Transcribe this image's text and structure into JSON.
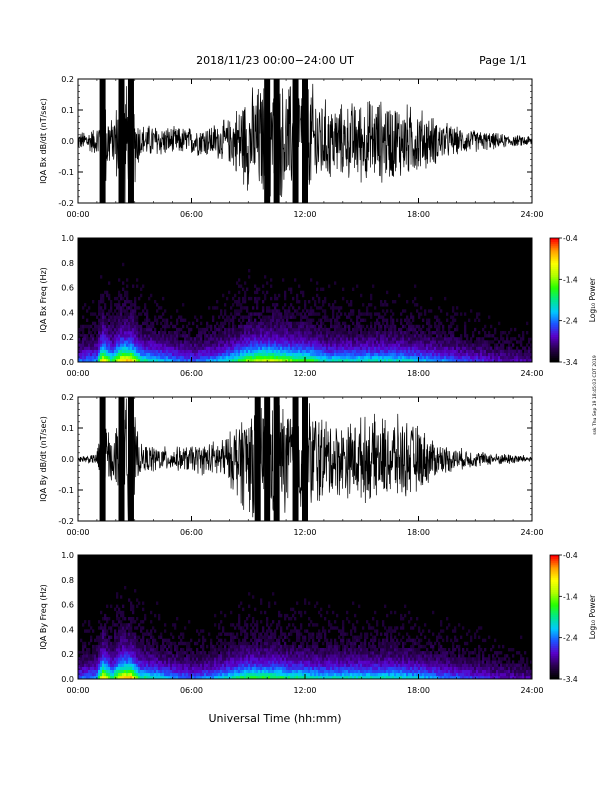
{
  "header": {
    "title": "2018/11/23  00:00−24:00 UT",
    "page": "Page 1/1"
  },
  "footer": {
    "xlabel": "Universal Time (hh:mm)",
    "side_note": "ssk Thu Sep 19 18:45:03 CDT 2019"
  },
  "colors": {
    "colormap": [
      "#000000",
      "#2a0050",
      "#5a00c8",
      "#1e50ff",
      "#00c8ff",
      "#00e88c",
      "#28ff00",
      "#b4ff00",
      "#ffff00",
      "#ffa000",
      "#ff0000"
    ]
  },
  "chart_data": [
    {
      "type": "line",
      "title": "",
      "ylabel": "IQA Bx dB/dt (nT/sec)",
      "xlim": [
        "00:00",
        "24:00"
      ],
      "ylim": [
        -0.2,
        0.2
      ],
      "x_ticks": [
        "00:00",
        "06:00",
        "12:00",
        "18:00",
        "24:00"
      ],
      "y_ticks": [
        "-0.2",
        "-0.1",
        "0.0",
        "0.1",
        "0.2"
      ],
      "x_hours": [
        0,
        1,
        1.3,
        1.8,
        2.3,
        2.8,
        3.3,
        4,
        5,
        6,
        7,
        8,
        8.5,
        9,
        9.5,
        10,
        10.5,
        11,
        11.5,
        12,
        12.5,
        13,
        14,
        15,
        16,
        17,
        18,
        19,
        20,
        21,
        22,
        23,
        24
      ],
      "amplitude": [
        0.03,
        0.05,
        0.22,
        0.07,
        0.22,
        0.22,
        0.06,
        0.06,
        0.05,
        0.05,
        0.06,
        0.08,
        0.14,
        0.18,
        0.2,
        0.22,
        0.22,
        0.2,
        0.22,
        0.22,
        0.2,
        0.15,
        0.13,
        0.15,
        0.15,
        0.14,
        0.12,
        0.08,
        0.05,
        0.04,
        0.03,
        0.02,
        0.02
      ]
    },
    {
      "type": "heatmap",
      "title": "",
      "ylabel": "IQA Bx Freq (Hz)",
      "xlim": [
        "00:00",
        "24:00"
      ],
      "ylim": [
        0,
        1.0
      ],
      "x_ticks": [
        "00:00",
        "06:00",
        "12:00",
        "18:00",
        "24:00"
      ],
      "y_ticks": [
        "0.0",
        "0.2",
        "0.4",
        "0.6",
        "0.8",
        "1.0"
      ],
      "colorbar_label": "Log₁₀ Power",
      "colorbar_ticks": [
        "-0.4",
        "-1.4",
        "-2.4",
        "-3.4"
      ],
      "color_range": [
        -3.4,
        -0.4
      ],
      "x_hours": [
        0,
        1,
        1.3,
        1.8,
        2.3,
        2.8,
        3.3,
        4,
        5,
        6,
        7,
        8,
        8.5,
        9,
        9.5,
        10,
        10.5,
        11,
        11.5,
        12,
        12.5,
        13,
        14,
        15,
        16,
        17,
        18,
        19,
        20,
        21,
        22,
        23,
        24
      ],
      "low_freq_level": [
        0.3,
        0.35,
        0.85,
        0.5,
        0.85,
        0.85,
        0.5,
        0.45,
        0.35,
        0.3,
        0.35,
        0.45,
        0.55,
        0.65,
        0.7,
        0.72,
        0.7,
        0.65,
        0.6,
        0.6,
        0.55,
        0.45,
        0.45,
        0.45,
        0.45,
        0.45,
        0.4,
        0.35,
        0.3,
        0.25,
        0.2,
        0.18,
        0.15
      ]
    },
    {
      "type": "line",
      "title": "",
      "ylabel": "IQA By dB/dt (nT/sec)",
      "xlim": [
        "00:00",
        "24:00"
      ],
      "ylim": [
        -0.2,
        0.2
      ],
      "x_ticks": [
        "00:00",
        "06:00",
        "12:00",
        "18:00",
        "24:00"
      ],
      "y_ticks": [
        "-0.2",
        "-0.1",
        "0.0",
        "0.1",
        "0.2"
      ],
      "x_hours": [
        0,
        1,
        1.3,
        1.8,
        2.3,
        2.8,
        3.3,
        4,
        5,
        6,
        7,
        8,
        8.5,
        9,
        9.5,
        10,
        10.5,
        11,
        11.5,
        12,
        12.5,
        13,
        14,
        15,
        16,
        17,
        18,
        19,
        20,
        21,
        22,
        23,
        24
      ],
      "amplitude": [
        0.01,
        0.02,
        0.22,
        0.06,
        0.22,
        0.22,
        0.05,
        0.05,
        0.04,
        0.05,
        0.06,
        0.09,
        0.16,
        0.2,
        0.22,
        0.22,
        0.22,
        0.2,
        0.22,
        0.22,
        0.2,
        0.15,
        0.13,
        0.15,
        0.15,
        0.15,
        0.12,
        0.06,
        0.04,
        0.03,
        0.02,
        0.02,
        0.01
      ]
    },
    {
      "type": "heatmap",
      "title": "",
      "ylabel": "IQA By Freq (Hz)",
      "xlim": [
        "00:00",
        "24:00"
      ],
      "ylim": [
        0,
        1.0
      ],
      "x_ticks": [
        "00:00",
        "06:00",
        "12:00",
        "18:00",
        "24:00"
      ],
      "y_ticks": [
        "0.0",
        "0.2",
        "0.4",
        "0.6",
        "0.8",
        "1.0"
      ],
      "colorbar_label": "Log₁₀ Power",
      "colorbar_ticks": [
        "-0.4",
        "-1.4",
        "-2.4",
        "-3.4"
      ],
      "color_range": [
        -3.4,
        -0.4
      ],
      "x_hours": [
        0,
        1,
        1.3,
        1.8,
        2.3,
        2.8,
        3.3,
        4,
        5,
        6,
        7,
        8,
        8.5,
        9,
        9.5,
        10,
        10.5,
        11,
        11.5,
        12,
        12.5,
        13,
        14,
        15,
        16,
        17,
        18,
        19,
        20,
        21,
        22,
        23,
        24
      ],
      "low_freq_level": [
        0.3,
        0.35,
        0.85,
        0.5,
        0.85,
        0.85,
        0.5,
        0.45,
        0.35,
        0.3,
        0.35,
        0.45,
        0.5,
        0.55,
        0.55,
        0.55,
        0.55,
        0.5,
        0.5,
        0.5,
        0.45,
        0.45,
        0.45,
        0.45,
        0.45,
        0.45,
        0.4,
        0.35,
        0.3,
        0.25,
        0.2,
        0.18,
        0.15
      ]
    }
  ]
}
